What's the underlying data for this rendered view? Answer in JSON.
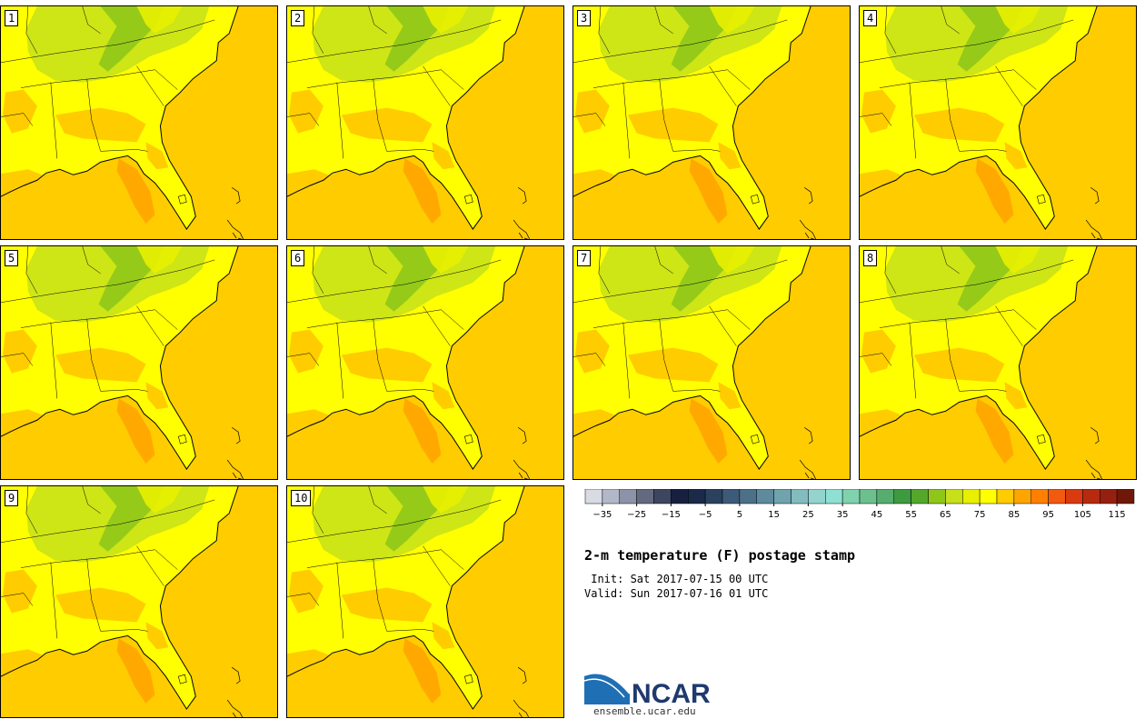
{
  "panels": [
    "1",
    "2",
    "3",
    "4",
    "5",
    "6",
    "7",
    "8",
    "9",
    "10"
  ],
  "colorbar": {
    "colors": [
      "#d8dbe4",
      "#b3b8c9",
      "#8c93a8",
      "#636a80",
      "#3d4660",
      "#182040",
      "#1a2a48",
      "#2a4260",
      "#3d5a78",
      "#4c7088",
      "#5d8a9c",
      "#6fa3ae",
      "#82bcbf",
      "#93d4cf",
      "#8ee0d2",
      "#80d2ae",
      "#6cc08e",
      "#56ad6e",
      "#3d9a3e",
      "#55a72c",
      "#8fc61a",
      "#c6e01a",
      "#e8f000",
      "#ffff00",
      "#ffcc00",
      "#ffa500",
      "#ff7f00",
      "#f25a10",
      "#d93a10",
      "#b82a10",
      "#962010",
      "#701808"
    ],
    "tick_labels": [
      "−35",
      "−25",
      "−15",
      "−5",
      "5",
      "15",
      "25",
      "35",
      "45",
      "55",
      "65",
      "75",
      "85",
      "95",
      "105",
      "115"
    ]
  },
  "title": "2-m temperature (F) postage stamp",
  "init": " Init: Sat 2017-07-15 00 UTC",
  "valid": "Valid: Sun 2017-07-16 01 UTC",
  "logo": {
    "text": "NCAR",
    "subtitle": "ensemble.ucar.edu",
    "colors": {
      "blue": "#1f6fb5",
      "navy": "#1e3a6e"
    }
  }
}
